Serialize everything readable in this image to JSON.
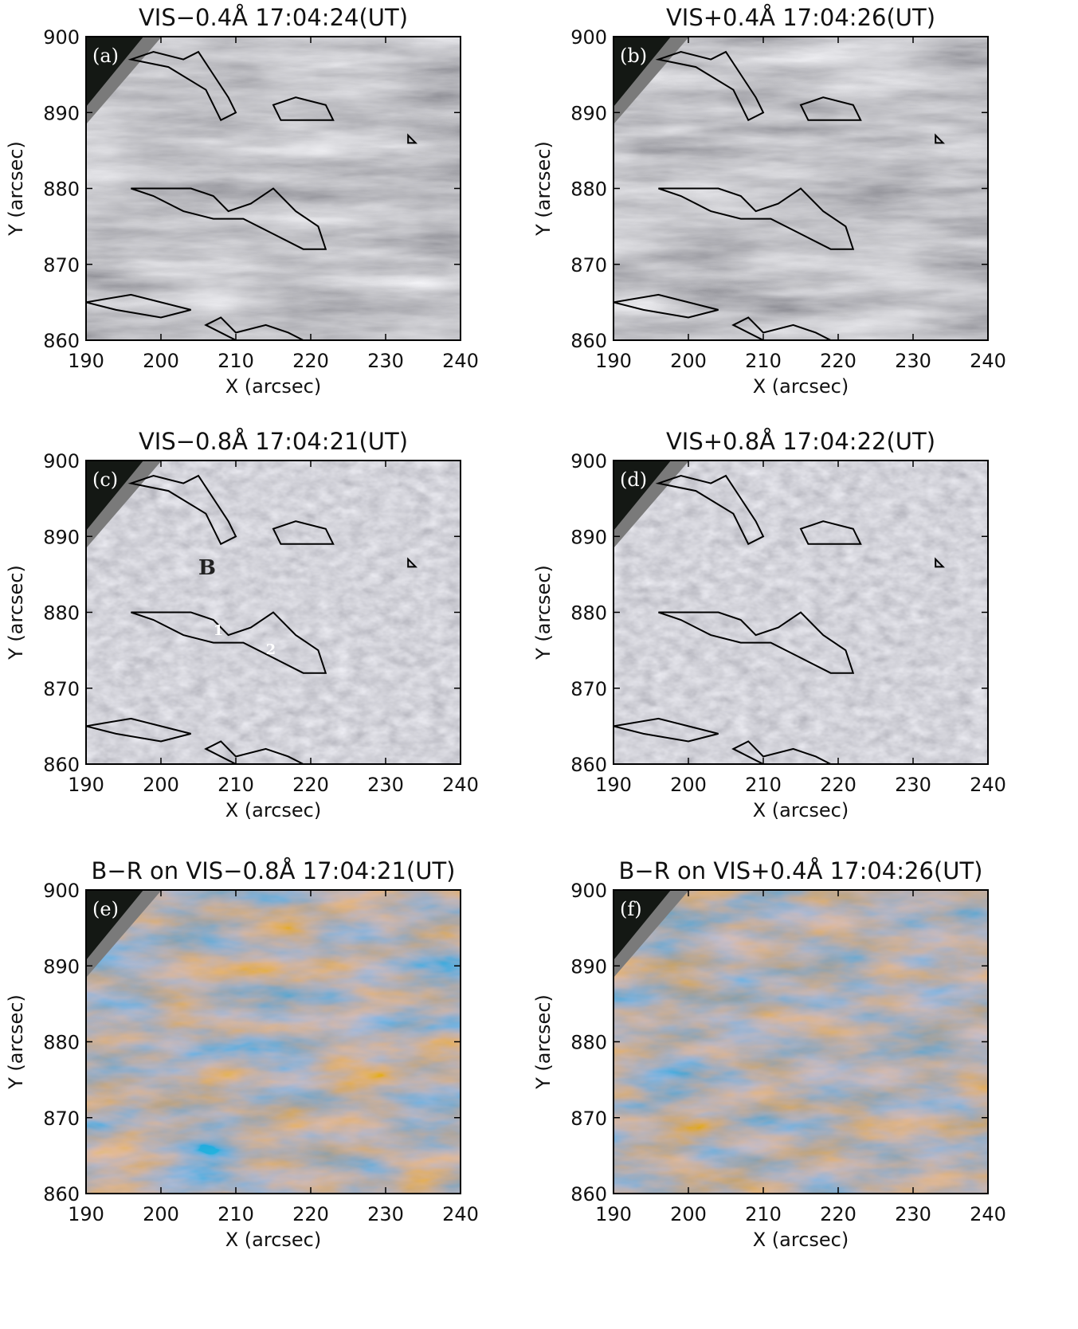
{
  "figure": {
    "xlabel": "X (arcsec)",
    "ylabel": "Y (arcsec)",
    "xlim": [
      190,
      240
    ],
    "ylim": [
      860,
      900
    ],
    "xticks": [
      190,
      200,
      210,
      220,
      230,
      240
    ],
    "yticks": [
      860,
      870,
      880,
      890,
      900
    ],
    "panels": [
      {
        "label": "(a)",
        "title": "VIS−0.4Å  17:04:24(UT)"
      },
      {
        "label": "(b)",
        "title": "VIS+0.4Å  17:04:26(UT)"
      },
      {
        "label": "(c)",
        "title": "VIS−0.8Å  17:04:21(UT)",
        "annotations": [
          "B",
          "1",
          "2"
        ]
      },
      {
        "label": "(d)",
        "title": "VIS+0.8Å  17:04:22(UT)"
      },
      {
        "label": "(e)",
        "title": "B−R  on VIS−0.8Å  17:04:21(UT)"
      },
      {
        "label": "(f)",
        "title": "B−R  on VIS+0.4Å  17:04:26(UT)"
      }
    ]
  }
}
